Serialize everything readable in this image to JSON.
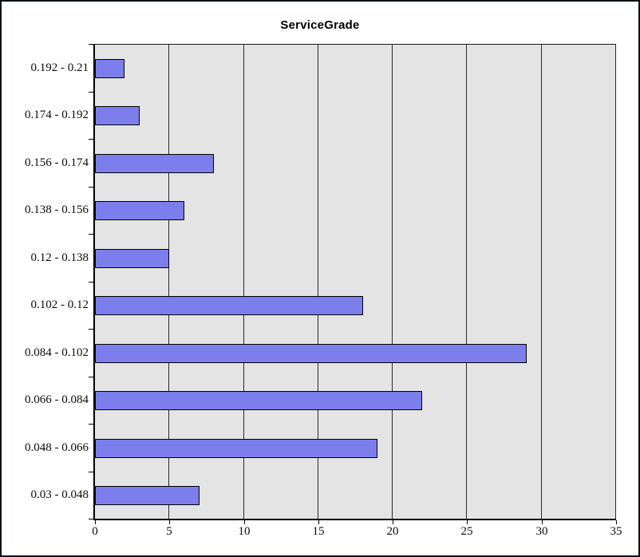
{
  "window": {
    "background": "#ffffff",
    "border_color": "#0d1117"
  },
  "chart_data": {
    "type": "bar",
    "orientation": "horizontal",
    "title": "ServiceGrade",
    "categories": [
      "0.192 - 0.21",
      "0.174 - 0.192",
      "0.156 - 0.174",
      "0.138 - 0.156",
      "0.12 - 0.138",
      "0.102 - 0.12",
      "0.084 - 0.102",
      "0.066 - 0.084",
      "0.048 - 0.066",
      "0.03 - 0.048"
    ],
    "values": [
      2,
      3,
      8,
      6,
      5,
      18,
      29,
      22,
      19,
      7
    ],
    "xlabel": "",
    "ylabel": "",
    "xlim": [
      0,
      35
    ],
    "xticks": [
      0,
      5,
      10,
      15,
      20,
      25,
      30,
      35
    ],
    "grid": "vertical",
    "legend": "none",
    "bar_color": "#7C7EEC",
    "bar_border_color": "#000000",
    "plot_background": "#E4E4E4",
    "gridline_color": "#2a2a2a",
    "axis_color": "#000000",
    "text_color": "#100808"
  }
}
